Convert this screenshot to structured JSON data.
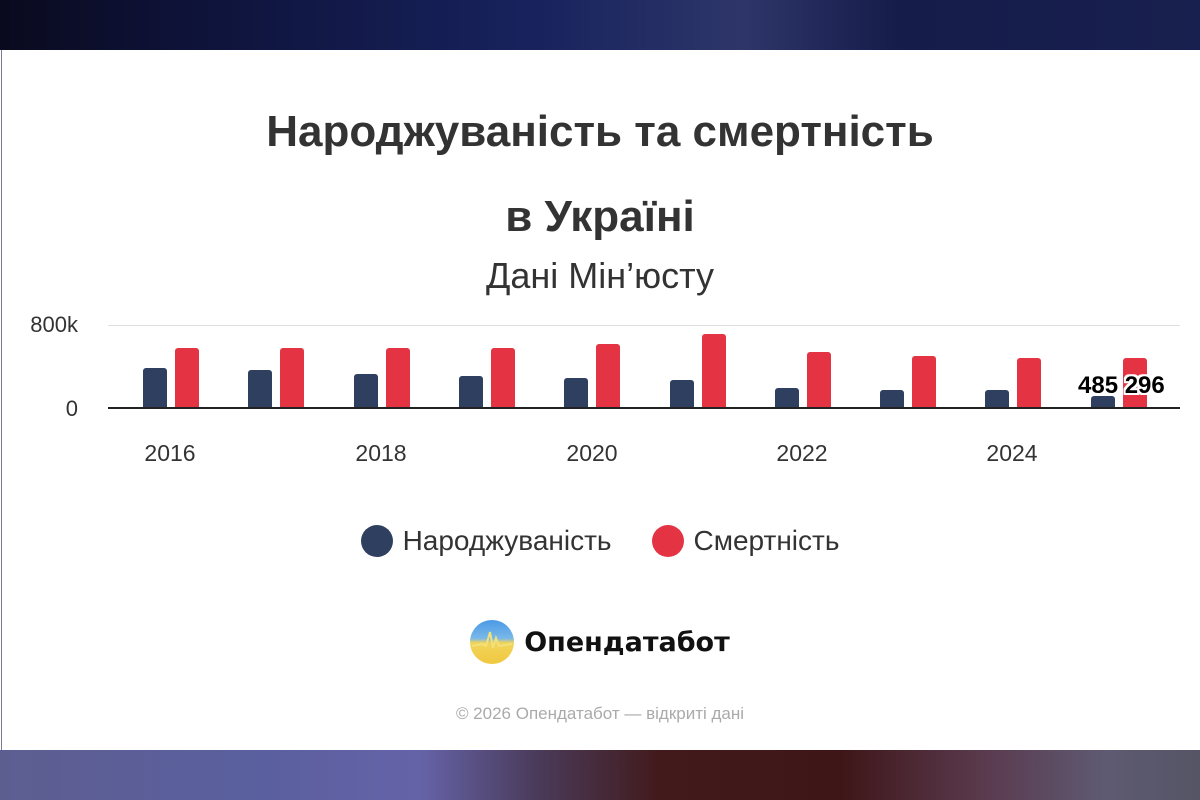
{
  "title_line1": "Народжуваність та смертність",
  "title_line2": "в Україні",
  "subtitle": "Дані Мін’юсту",
  "y_axis": {
    "ticks": [
      "800k",
      "0"
    ]
  },
  "x_axis": {
    "labels": [
      "2016",
      "2018",
      "2020",
      "2022",
      "2024"
    ]
  },
  "legend": [
    {
      "label": "Народжуваність",
      "color": "#2e3f5f"
    },
    {
      "label": "Смертність",
      "color": "#e43444"
    }
  ],
  "data_label": "485 296",
  "brand": {
    "name": "Опендатабот"
  },
  "footer": "© 2026 Опендатабот — відкриті дані",
  "chart_data": {
    "type": "bar",
    "title": "Народжуваність та смертність в Україні",
    "subtitle": "Дані Мін’юсту",
    "categories": [
      "2016",
      "2017",
      "2018",
      "2019",
      "2020",
      "2021",
      "2022",
      "2023",
      "2024",
      "2025"
    ],
    "series": [
      {
        "name": "Народжуваність",
        "color": "#2e3f5f",
        "values": [
          386000,
          366000,
          328000,
          308000,
          293000,
          270000,
          193000,
          174000,
          174000,
          116000
        ]
      },
      {
        "name": "Смертність",
        "color": "#e43444",
        "values": [
          578000,
          578000,
          578000,
          578000,
          617000,
          714000,
          540000,
          501000,
          482000,
          485296
        ]
      }
    ],
    "xlabel": "",
    "ylabel": "",
    "ylim": [
      0,
      800000
    ],
    "y_ticks": [
      "0",
      "800k"
    ],
    "x_tick_labels": [
      "2016",
      "2018",
      "2020",
      "2022",
      "2024"
    ],
    "annotations": [
      {
        "category": "2025",
        "series": "Смертність",
        "text": "485 296"
      }
    ],
    "grid": true,
    "legend_position": "bottom"
  }
}
